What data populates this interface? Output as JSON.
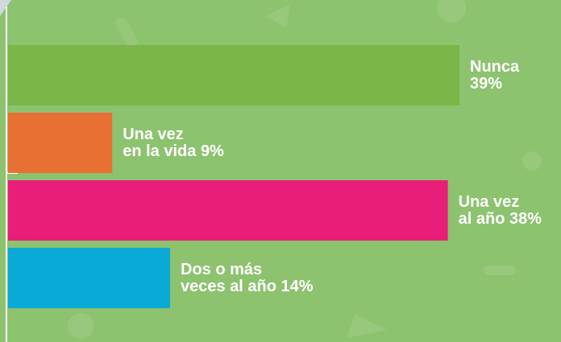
{
  "chart_data": {
    "type": "bar",
    "orientation": "horizontal",
    "categories": [
      "Nunca",
      "Una vez\nen la vida",
      "Una vez\nal año",
      "Dos o más\nveces al año"
    ],
    "values": [
      39,
      9,
      38,
      14
    ],
    "value_labels": [
      "39%",
      "9%",
      "38%",
      "14%"
    ],
    "colors": [
      "#7ab648",
      "#e87033",
      "#e91e78",
      "#0aaad7"
    ]
  }
}
